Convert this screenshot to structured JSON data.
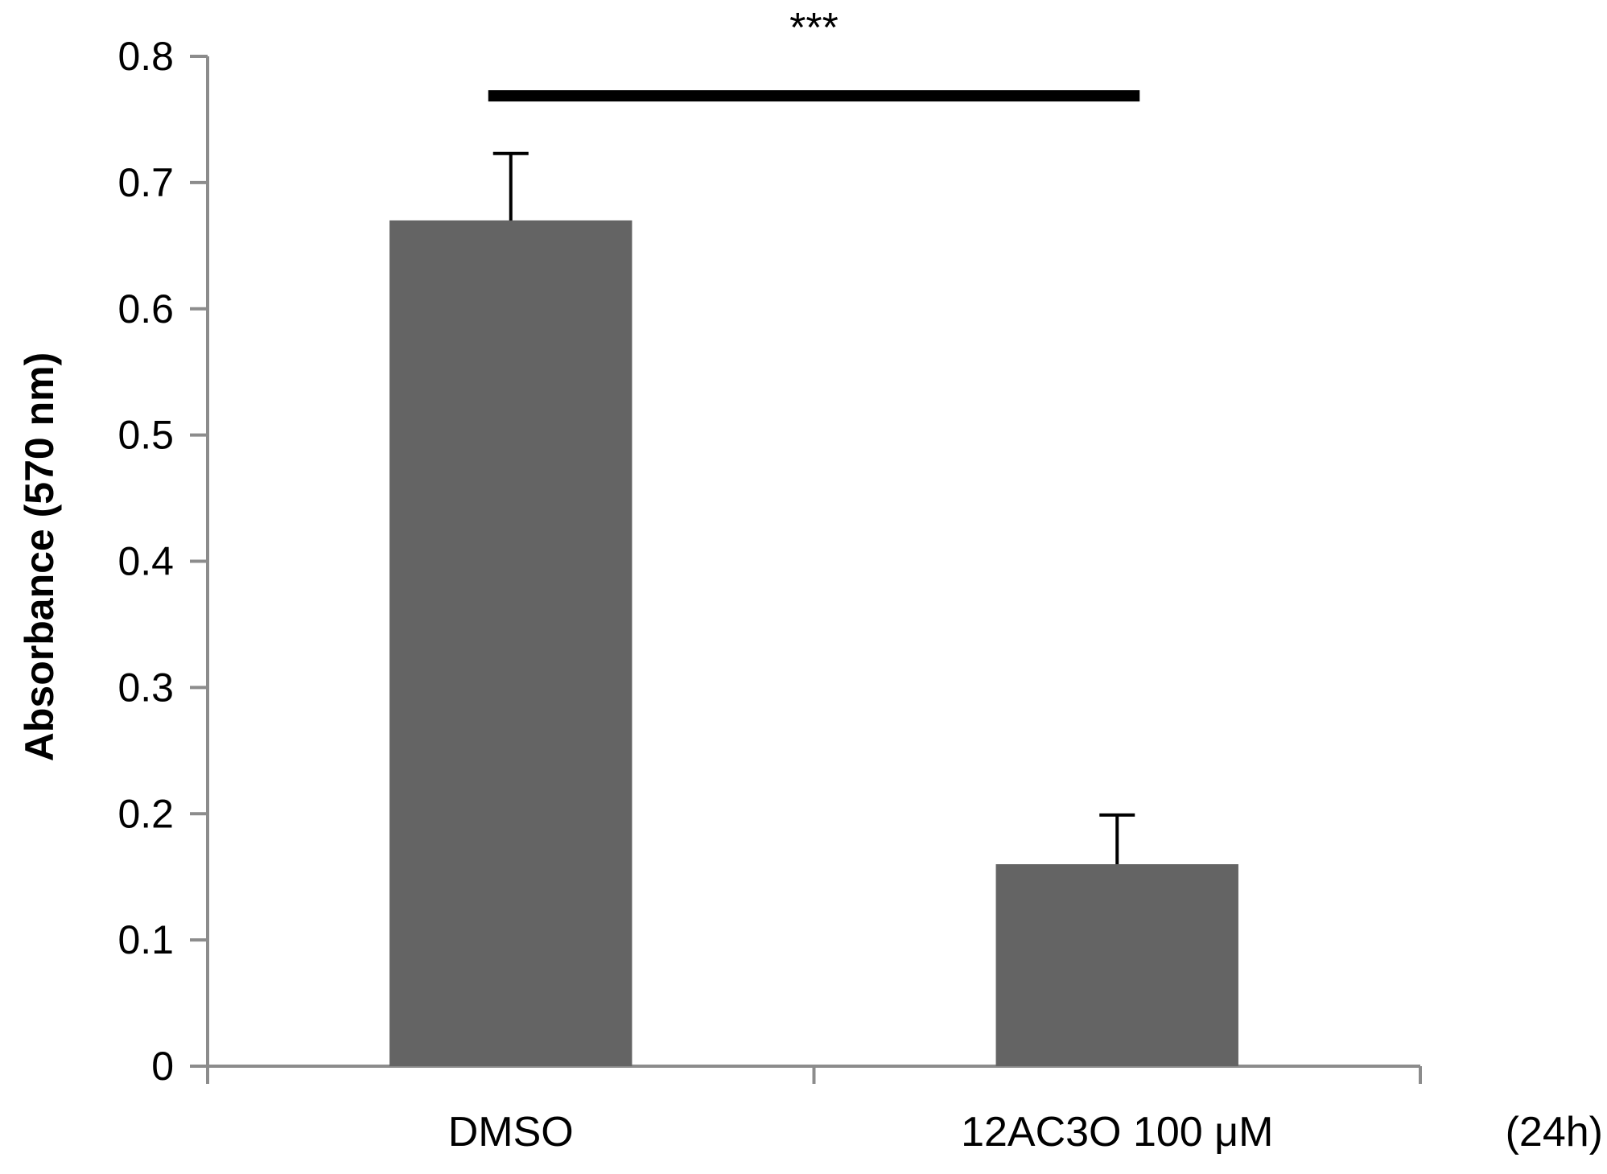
{
  "chart_data": {
    "type": "bar",
    "categories": [
      "DMSO",
      "12AC3O 100 μM"
    ],
    "values": [
      0.67,
      0.16
    ],
    "errors": [
      0.053,
      0.039
    ],
    "ylabel": "Absorbance (570 nm)",
    "xlabel": "",
    "ylim": [
      0,
      0.8
    ],
    "yticks": [
      0,
      0.1,
      0.2,
      0.3,
      0.4,
      0.5,
      0.6,
      0.7,
      0.8
    ],
    "bar_color": "#646464",
    "axis_color": "#8c8c8c",
    "significance": {
      "label": "***",
      "from": "DMSO",
      "to": "12AC3O 100 μM",
      "level": 0.77
    },
    "annotation": "(24h)",
    "grid": false
  }
}
